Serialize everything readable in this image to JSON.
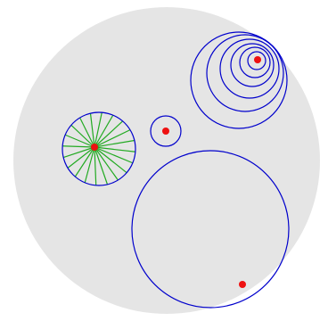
{
  "colors": {
    "background": "#ffffff",
    "disk_fill": "#e5e5e5",
    "circle_stroke": "#0000cc",
    "ray_stroke": "#22aa22",
    "point_fill": "#ee1111"
  },
  "diagram": {
    "figures": [
      {
        "kind": "nested-circles-family",
        "count": 6
      },
      {
        "kind": "circle-with-rays",
        "ray_count": 20
      },
      {
        "kind": "small-circle-with-offset-point"
      },
      {
        "kind": "large-circle-with-interior-point"
      }
    ]
  }
}
